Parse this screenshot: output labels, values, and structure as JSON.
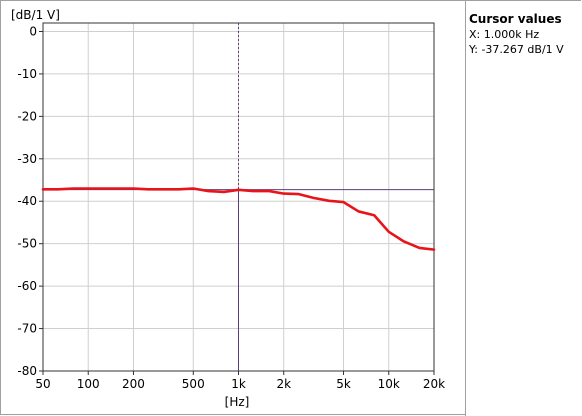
{
  "cursor_panel": {
    "title": "Cursor values",
    "x_line": "X: 1.000k Hz",
    "y_line": "Y: -37.267 dB/1 V"
  },
  "colors": {
    "series": "#e8141b",
    "cursor": "#5c3d7a",
    "grid": "#cfcfcf"
  },
  "chart_data": {
    "type": "line",
    "xscale": "log",
    "xlim": [
      50,
      20000
    ],
    "ylim": [
      -80,
      2
    ],
    "xlabel": "[Hz]",
    "ylabel": "[dB/1 V]",
    "xticks": [
      50,
      100,
      200,
      500,
      1000,
      2000,
      5000,
      10000,
      20000
    ],
    "xtick_labels": [
      "50",
      "100",
      "200",
      "500",
      "1k",
      "2k",
      "5k",
      "10k",
      "20k"
    ],
    "yticks": [
      0,
      -10,
      -20,
      -30,
      -40,
      -50,
      -60,
      -70,
      -80
    ],
    "ytick_labels": [
      "0",
      "-10",
      "-20",
      "-30",
      "-40",
      "-50",
      "-60",
      "-70",
      "-80"
    ],
    "grid": true,
    "cursor": {
      "x": 1000,
      "y": -37.267
    },
    "series": [
      {
        "x": [
          50,
          63,
          80,
          100,
          125,
          160,
          200,
          250,
          315,
          400,
          500,
          630,
          800,
          1000,
          1250,
          1600,
          2000,
          2500,
          3150,
          4000,
          5000,
          6300,
          8000,
          10000,
          12500,
          16000,
          20000
        ],
        "y": [
          -37.2,
          -37.2,
          -37.0,
          -37.0,
          -37.0,
          -37.0,
          -37.0,
          -37.2,
          -37.2,
          -37.2,
          -37.0,
          -37.6,
          -37.8,
          -37.3,
          -37.6,
          -37.6,
          -38.2,
          -38.3,
          -39.2,
          -39.9,
          -40.2,
          -42.4,
          -43.3,
          -47.2,
          -49.4,
          -51.0,
          -51.4
        ]
      }
    ]
  }
}
